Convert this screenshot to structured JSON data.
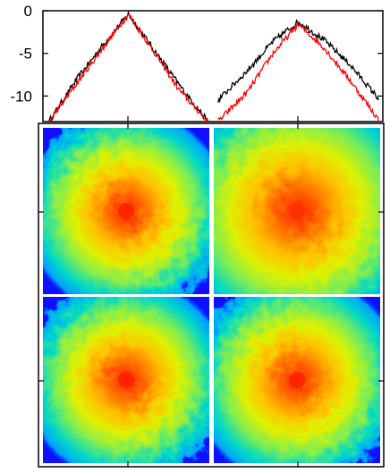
{
  "chart_data": [
    {
      "type": "line",
      "panel": "top-left",
      "ylim": [
        -13,
        0
      ],
      "yticks": [
        {
          "value": 0,
          "label": "0"
        },
        {
          "value": -5,
          "label": "-5"
        },
        {
          "value": -10,
          "label": "-10"
        }
      ],
      "xlim": [
        -1,
        1
      ],
      "series": [
        {
          "color": "#000000",
          "x": [
            -0.95,
            -0.6,
            -0.3,
            0.0,
            0.3,
            0.6,
            0.95
          ],
          "y": [
            -13.0,
            -7.8,
            -4.0,
            -0.4,
            -4.5,
            -8.6,
            -13.0
          ]
        },
        {
          "color": "#ff0000",
          "x": [
            -0.95,
            -0.6,
            -0.3,
            0.0,
            0.3,
            0.6,
            0.95
          ],
          "y": [
            -13.0,
            -8.3,
            -4.3,
            -0.4,
            -4.7,
            -9.2,
            -13.0
          ]
        }
      ]
    },
    {
      "type": "line",
      "panel": "top-right",
      "ylim": [
        -13,
        0
      ],
      "xlim": [
        -1,
        1
      ],
      "series": [
        {
          "color": "#000000",
          "x": [
            -0.95,
            -0.6,
            -0.3,
            0.0,
            0.3,
            0.6,
            0.95
          ],
          "y": [
            -10.5,
            -7.0,
            -3.6,
            -1.3,
            -3.4,
            -6.2,
            -10.3
          ]
        },
        {
          "color": "#ff0000",
          "x": [
            -0.95,
            -0.6,
            -0.3,
            0.0,
            0.3,
            0.6,
            0.95
          ],
          "y": [
            -13.0,
            -9.5,
            -5.0,
            -1.6,
            -4.3,
            -8.0,
            -12.8
          ]
        }
      ]
    },
    {
      "type": "heatmap",
      "panels": [
        {
          "position": "top-left",
          "core_radius": 0.42,
          "peak_color": "#ff2000"
        },
        {
          "position": "top-right",
          "core_radius": 0.58,
          "peak_color": "#ff3000"
        },
        {
          "position": "bottom-left",
          "core_radius": 0.42,
          "peak_color": "#ff2000"
        },
        {
          "position": "bottom-right",
          "core_radius": 0.44,
          "peak_color": "#ff2000"
        }
      ],
      "colormap": [
        "#1010ff",
        "#00a8ff",
        "#00e0c0",
        "#80f060",
        "#f0f000",
        "#ffa000",
        "#ff2000"
      ],
      "background_color": "#1010ff"
    }
  ]
}
